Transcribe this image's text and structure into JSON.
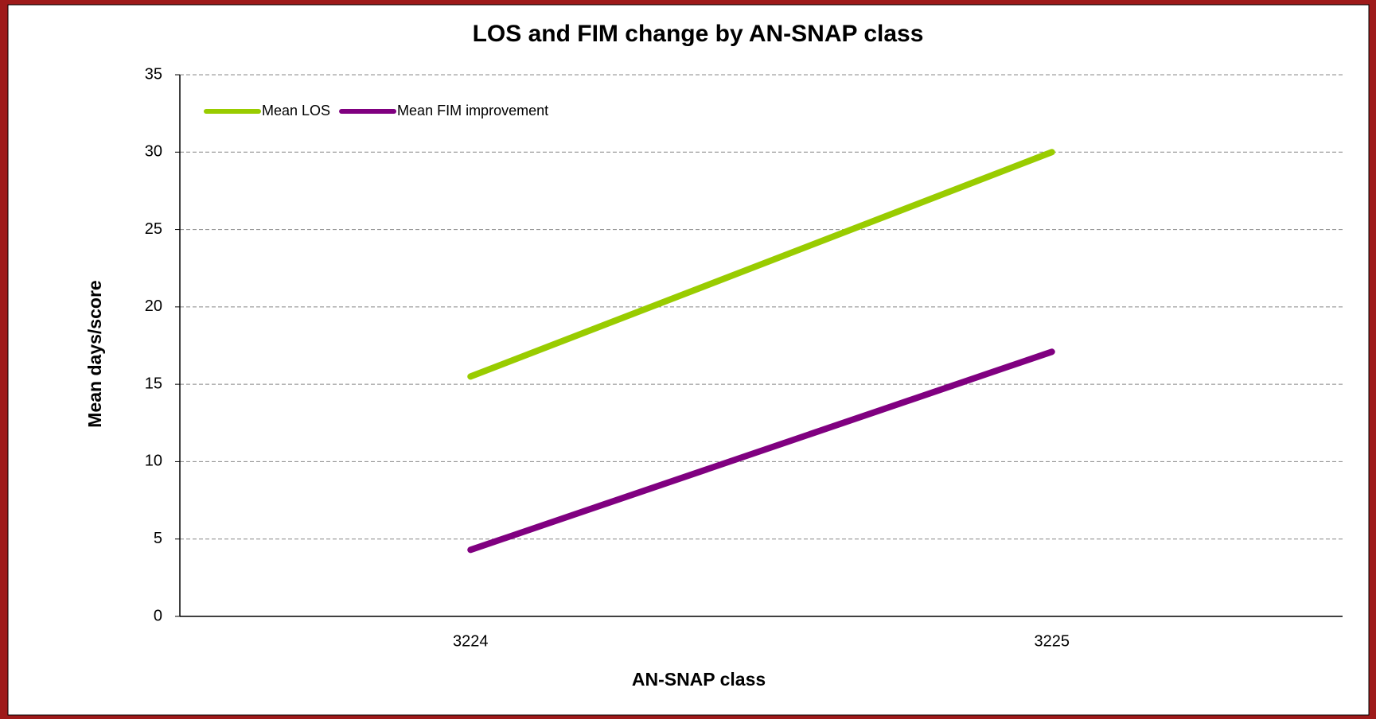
{
  "chart_data": {
    "type": "line",
    "title": "LOS and FIM change by AN-SNAP  class",
    "x_label": "AN-SNAP class",
    "y_label": "Mean days/score",
    "categories": [
      "3224",
      "3225"
    ],
    "series": [
      {
        "name": "Mean LOS",
        "color": "#99cc00",
        "values": [
          15.5,
          30.0
        ]
      },
      {
        "name": "Mean FIM improvement",
        "color": "#800080",
        "values": [
          4.3,
          17.1
        ]
      }
    ],
    "ylim": [
      0,
      35
    ],
    "yticks": [
      0,
      5,
      10,
      15,
      20,
      25,
      30,
      35
    ],
    "grid": true,
    "legend": "top-left"
  }
}
